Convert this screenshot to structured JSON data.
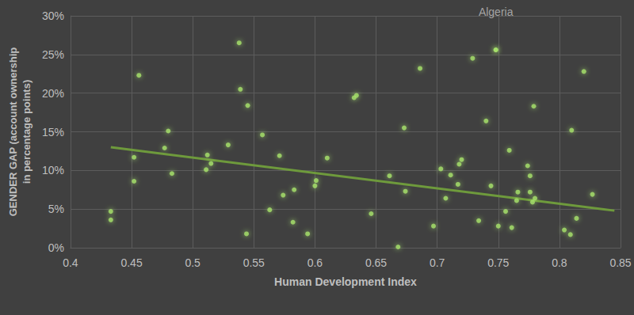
{
  "chart_data": {
    "type": "scatter",
    "x_label": "Human Development Index",
    "y_label": "GENDER GAP (account ownership in percentage points)",
    "x": [
      0.433,
      0.433,
      0.452,
      0.452,
      0.456,
      0.477,
      0.48,
      0.483,
      0.511,
      0.512,
      0.515,
      0.529,
      0.538,
      0.539,
      0.545,
      0.544,
      0.557,
      0.563,
      0.571,
      0.574,
      0.582,
      0.583,
      0.594,
      0.6,
      0.601,
      0.61,
      0.632,
      0.634,
      0.646,
      0.661,
      0.668,
      0.673,
      0.674,
      0.686,
      0.697,
      0.703,
      0.707,
      0.711,
      0.717,
      0.718,
      0.72,
      0.729,
      0.734,
      0.74,
      0.744,
      0.748,
      0.75,
      0.756,
      0.759,
      0.761,
      0.765,
      0.766,
      0.774,
      0.776,
      0.776,
      0.778,
      0.779,
      0.78,
      0.804,
      0.809,
      0.81,
      0.814,
      0.82,
      0.827
    ],
    "values": [
      4.7,
      3.6,
      11.7,
      8.6,
      22.3,
      12.9,
      15.1,
      9.6,
      10.1,
      12.0,
      10.9,
      13.3,
      26.5,
      20.5,
      18.4,
      1.8,
      14.6,
      4.9,
      11.9,
      6.8,
      3.3,
      7.5,
      1.8,
      8.0,
      8.7,
      11.6,
      19.4,
      19.7,
      4.4,
      9.3,
      0.1,
      15.5,
      7.3,
      23.2,
      2.8,
      10.2,
      6.4,
      9.4,
      8.2,
      10.8,
      11.4,
      24.5,
      3.5,
      16.4,
      8.0,
      25.6,
      2.8,
      4.7,
      12.6,
      2.6,
      6.1,
      7.2,
      10.6,
      9.3,
      7.2,
      5.9,
      18.3,
      6.4,
      2.3,
      1.7,
      15.2,
      3.8,
      22.8,
      6.9
    ],
    "color": "#a8e36c",
    "marker": "circle",
    "xlim": [
      0.4,
      0.85
    ],
    "xticks": [
      0.4,
      0.45,
      0.5,
      0.55,
      0.6,
      0.65,
      0.7,
      0.75,
      0.8,
      0.85
    ],
    "ylim": [
      0,
      30
    ],
    "yticks": [
      {
        "value": 0,
        "label": "0%"
      },
      {
        "value": 5,
        "label": "5%"
      },
      {
        "value": 10,
        "label": "10%"
      },
      {
        "value": 15,
        "label": "15%"
      },
      {
        "value": 20,
        "label": "20%"
      },
      {
        "value": 25,
        "label": "25%"
      },
      {
        "value": 30,
        "label": "30%"
      }
    ],
    "grid": true,
    "trend": {
      "x": [
        0.433,
        0.845
      ],
      "values": [
        13.0,
        4.8
      ],
      "color": "#6e9a3c"
    },
    "annotations": [
      {
        "text": "Algeria",
        "x": 0.748,
        "y": 25.6
      }
    ]
  }
}
